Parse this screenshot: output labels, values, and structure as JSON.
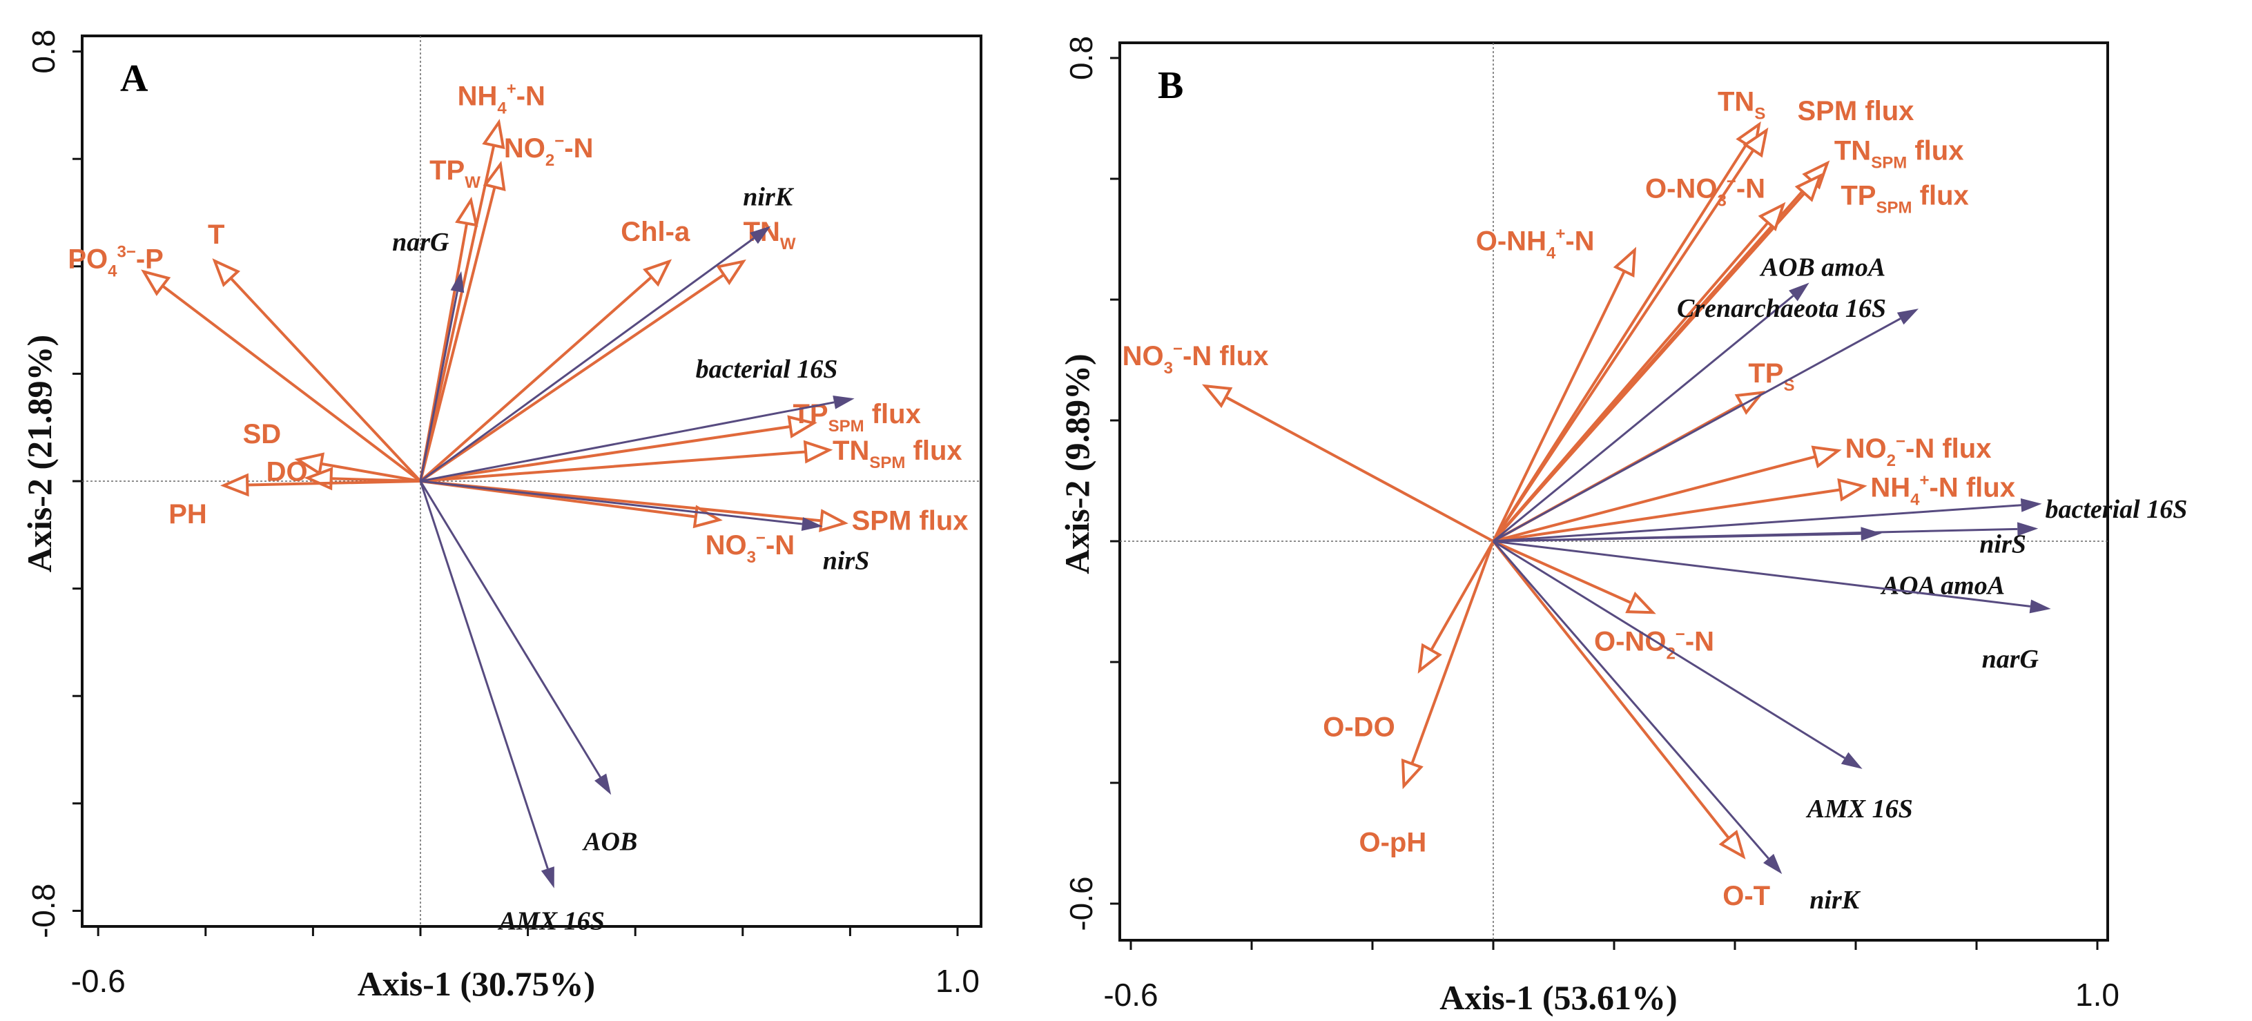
{
  "colors": {
    "env": "#E0693B",
    "gene": "#574B80",
    "frame": "#111111"
  },
  "chart_data": [
    {
      "type": "biplot",
      "panel_label": "A",
      "xlabel": "Axis-1 (30.75%)",
      "ylabel": "Axis-2 (21.89%)",
      "xlim": [
        -0.6,
        1.0
      ],
      "ylim": [
        -0.8,
        0.8
      ],
      "x_tick_labels": [
        "-0.6",
        "1.0"
      ],
      "y_tick_labels": [
        "0.8",
        "-0.8"
      ],
      "x_ticks": [
        -0.6,
        -0.4,
        -0.2,
        0,
        0.2,
        0.4,
        0.6,
        0.8,
        1.0
      ],
      "y_ticks": [
        0.8,
        0.6,
        0.4,
        0.2,
        0,
        -0.2,
        -0.4,
        -0.6,
        -0.8
      ],
      "env_vectors": [
        {
          "name": "PO43−-P",
          "label": [
            [
              "PO"
            ],
            [
              "4",
              "sub"
            ],
            [
              "3−",
              "sup"
            ],
            [
              "-P"
            ]
          ],
          "x": -0.515,
          "y": 0.39
        },
        {
          "name": "T",
          "label": [
            [
              "T"
            ]
          ],
          "x": -0.383,
          "y": 0.41
        },
        {
          "name": "SD",
          "label": [
            [
              "SD"
            ]
          ],
          "x": -0.228,
          "y": 0.04
        },
        {
          "name": "DO",
          "label": [
            [
              "DO"
            ]
          ],
          "x": -0.21,
          "y": 0.006
        },
        {
          "name": "PH",
          "label": [
            [
              "PH"
            ]
          ],
          "x": -0.366,
          "y": -0.008
        },
        {
          "name": "NH4+-N",
          "label": [
            [
              "NH"
            ],
            [
              "4",
              "sub"
            ],
            [
              "+",
              "sup"
            ],
            [
              "-N"
            ]
          ],
          "x": 0.146,
          "y": 0.668
        },
        {
          "name": "NO2−-N",
          "label": [
            [
              "NO"
            ],
            [
              "2",
              "sub"
            ],
            [
              "−",
              "sup"
            ],
            [
              "-N"
            ]
          ],
          "x": 0.149,
          "y": 0.59
        },
        {
          "name": "TPW",
          "label": [
            [
              "TP"
            ],
            [
              "W",
              "sub"
            ]
          ],
          "x": 0.094,
          "y": 0.523
        },
        {
          "name": "Chl-a",
          "label": [
            [
              "Chl-a"
            ]
          ],
          "x": 0.463,
          "y": 0.409
        },
        {
          "name": "TNW",
          "label": [
            [
              "TN"
            ],
            [
              "W",
              "sub"
            ]
          ],
          "x": 0.601,
          "y": 0.409
        },
        {
          "name": "TPSPM flux",
          "label": [
            [
              "TP"
            ],
            [
              "SPM",
              "sub"
            ],
            [
              " flux"
            ]
          ],
          "x": 0.732,
          "y": 0.108
        },
        {
          "name": "TNSPM flux",
          "label": [
            [
              "TN"
            ],
            [
              "SPM",
              "sub"
            ],
            [
              " flux"
            ]
          ],
          "x": 0.761,
          "y": 0.058
        },
        {
          "name": "SPM flux",
          "label": [
            [
              "SPM flux"
            ]
          ],
          "x": 0.79,
          "y": -0.078
        },
        {
          "name": "NO3−-N",
          "label": [
            [
              "NO"
            ],
            [
              "3",
              "sub"
            ],
            [
              "−",
              "sup"
            ],
            [
              "-N"
            ]
          ],
          "x": 0.556,
          "y": -0.072
        }
      ],
      "gene_vectors": [
        {
          "name": "narG",
          "x": 0.076,
          "y": 0.391
        },
        {
          "name": "nirK",
          "x": 0.652,
          "y": 0.475
        },
        {
          "name": "bacterial 16S",
          "x": 0.808,
          "y": 0.154
        },
        {
          "name": "nirS",
          "x": 0.749,
          "y": -0.084
        },
        {
          "name": "AOB",
          "x": 0.355,
          "y": -0.584
        },
        {
          "name": "AMX 16S",
          "x": 0.249,
          "y": -0.758
        }
      ]
    },
    {
      "type": "biplot",
      "panel_label": "B",
      "xlabel": "Axis-1 (53.61%)",
      "ylabel": "Axis-2 (9.89%)",
      "xlim": [
        -0.6,
        1.0
      ],
      "ylim": [
        -0.6,
        0.8
      ],
      "x_tick_labels": [
        "-0.6",
        "1.0"
      ],
      "y_tick_labels": [
        "0.8",
        "-0.6"
      ],
      "x_ticks": [
        -0.6,
        -0.4,
        -0.2,
        0,
        0.2,
        0.4,
        0.6,
        0.8,
        1.0
      ],
      "y_ticks": [
        0.8,
        0.6,
        0.4,
        0.2,
        0,
        -0.2,
        -0.4,
        -0.6
      ],
      "env_vectors": [
        {
          "name": "NO3−-N flux",
          "label": [
            [
              "NO"
            ],
            [
              "3",
              "sub"
            ],
            [
              "−",
              "sup"
            ],
            [
              "-N flux"
            ]
          ],
          "x": -0.477,
          "y": 0.257
        },
        {
          "name": "TNS",
          "label": [
            [
              "TN"
            ],
            [
              "S",
              "sub"
            ]
          ],
          "x": 0.44,
          "y": 0.69
        },
        {
          "name": "SPM flux",
          "label": [
            [
              "SPM flux"
            ]
          ],
          "x": 0.452,
          "y": 0.68
        },
        {
          "name": "TNSPM flux",
          "label": [
            [
              "TN"
            ],
            [
              "SPM",
              "sub"
            ],
            [
              " flux"
            ]
          ],
          "x": 0.553,
          "y": 0.626
        },
        {
          "name": "TPSPM flux",
          "label": [
            [
              "TP"
            ],
            [
              "SPM",
              "sub"
            ],
            [
              " flux"
            ]
          ],
          "x": 0.541,
          "y": 0.605
        },
        {
          "name": "O-NO3−-N",
          "label": [
            [
              "O-NO"
            ],
            [
              "3",
              "sub"
            ],
            [
              "−",
              "sup"
            ],
            [
              "-N"
            ]
          ],
          "x": 0.48,
          "y": 0.557
        },
        {
          "name": "O-NH4+-N",
          "label": [
            [
              "O-NH"
            ],
            [
              "4",
              "sub"
            ],
            [
              "+",
              "sup"
            ],
            [
              "-N"
            ]
          ],
          "x": 0.234,
          "y": 0.482
        },
        {
          "name": "TPS",
          "label": [
            [
              "TP"
            ],
            [
              "S",
              "sub"
            ]
          ],
          "x": 0.445,
          "y": 0.246
        },
        {
          "name": "NO2−-N flux",
          "label": [
            [
              "NO"
            ],
            [
              "2",
              "sub"
            ],
            [
              "−",
              "sup"
            ],
            [
              "-N flux"
            ]
          ],
          "x": 0.571,
          "y": 0.15
        },
        {
          "name": "NH4+-N flux",
          "label": [
            [
              "NH"
            ],
            [
              "4",
              "sub"
            ],
            [
              "+",
              "sup"
            ],
            [
              "-N flux"
            ]
          ],
          "x": 0.613,
          "y": 0.091
        },
        {
          "name": "O-NO2−-N",
          "label": [
            [
              "O-NO"
            ],
            [
              "2",
              "sub"
            ],
            [
              "−",
              "sup"
            ],
            [
              "-N"
            ]
          ],
          "x": 0.264,
          "y": -0.118
        },
        {
          "name": "O-DO",
          "label": [
            [
              "O-DO"
            ]
          ],
          "x": -0.122,
          "y": -0.214
        },
        {
          "name": "O-pH",
          "label": [
            [
              "O-pH"
            ]
          ],
          "x": -0.148,
          "y": -0.405
        },
        {
          "name": "O-T",
          "label": [
            [
              "O-T"
            ]
          ],
          "x": 0.414,
          "y": -0.522
        }
      ],
      "gene_vectors": [
        {
          "name": "AOB amoA",
          "x": 0.523,
          "y": 0.428
        },
        {
          "name": "Crenarchaeota 16S",
          "x": 0.704,
          "y": 0.385
        },
        {
          "name": "bacterial 16S",
          "x": 0.908,
          "y": 0.062
        },
        {
          "name": "nirS",
          "x": 0.902,
          "y": 0.021
        },
        {
          "name": "AOA amoA",
          "x": 0.643,
          "y": 0.013
        },
        {
          "name": "narG",
          "x": 0.923,
          "y": -0.112
        },
        {
          "name": "AMX 16S",
          "x": 0.611,
          "y": -0.377
        },
        {
          "name": "nirK",
          "x": 0.478,
          "y": -0.551
        }
      ]
    }
  ]
}
